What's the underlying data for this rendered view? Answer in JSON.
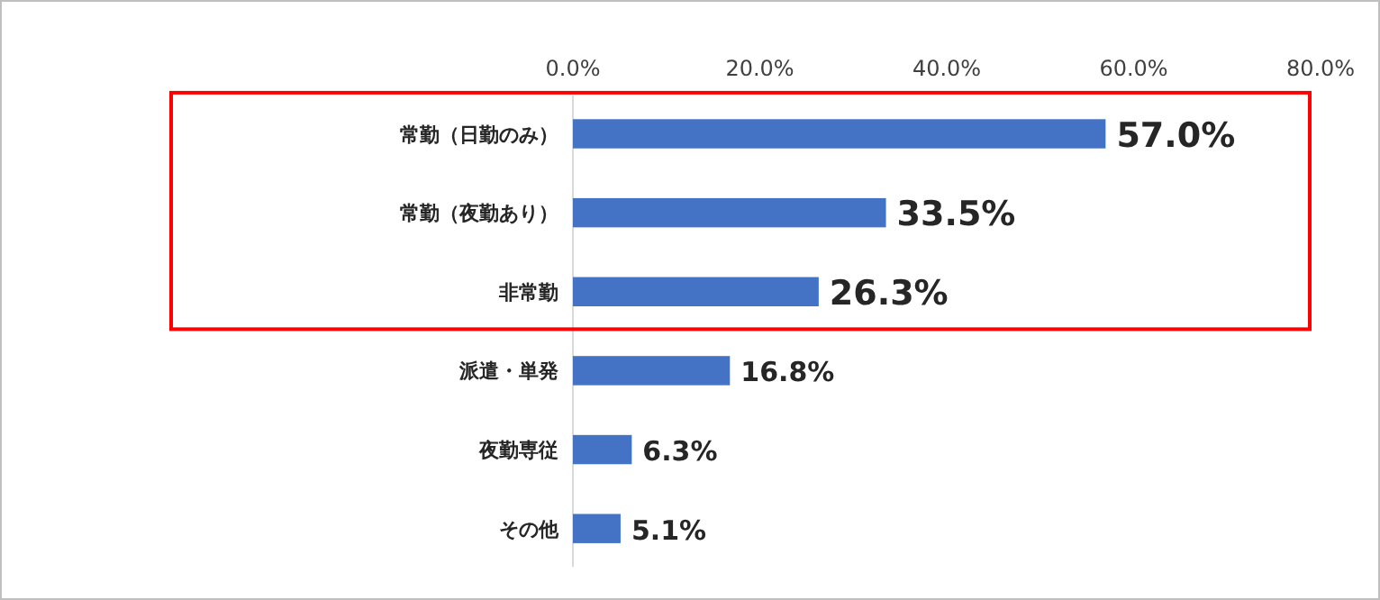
{
  "chart_data": {
    "type": "bar",
    "orientation": "horizontal",
    "categories": [
      "常勤（日勤のみ）",
      "常勤（夜勤あり）",
      "非常勤",
      "派遣・単発",
      "夜勤専従",
      "その他"
    ],
    "values": [
      57.0,
      33.5,
      26.3,
      16.8,
      6.3,
      5.1
    ],
    "value_labels": [
      "57.0%",
      "33.5%",
      "26.3%",
      "16.8%",
      "6.3%",
      "5.1%"
    ],
    "color": "#4472c4",
    "xlim": [
      0,
      80
    ],
    "xticks": [
      {
        "value": 0,
        "label": "0.0%"
      },
      {
        "value": 20,
        "label": "20.0%"
      },
      {
        "value": 40,
        "label": "40.0%"
      },
      {
        "value": 60,
        "label": "60.0%"
      },
      {
        "value": 80,
        "label": "80.0%"
      }
    ],
    "grid": false
  }
}
